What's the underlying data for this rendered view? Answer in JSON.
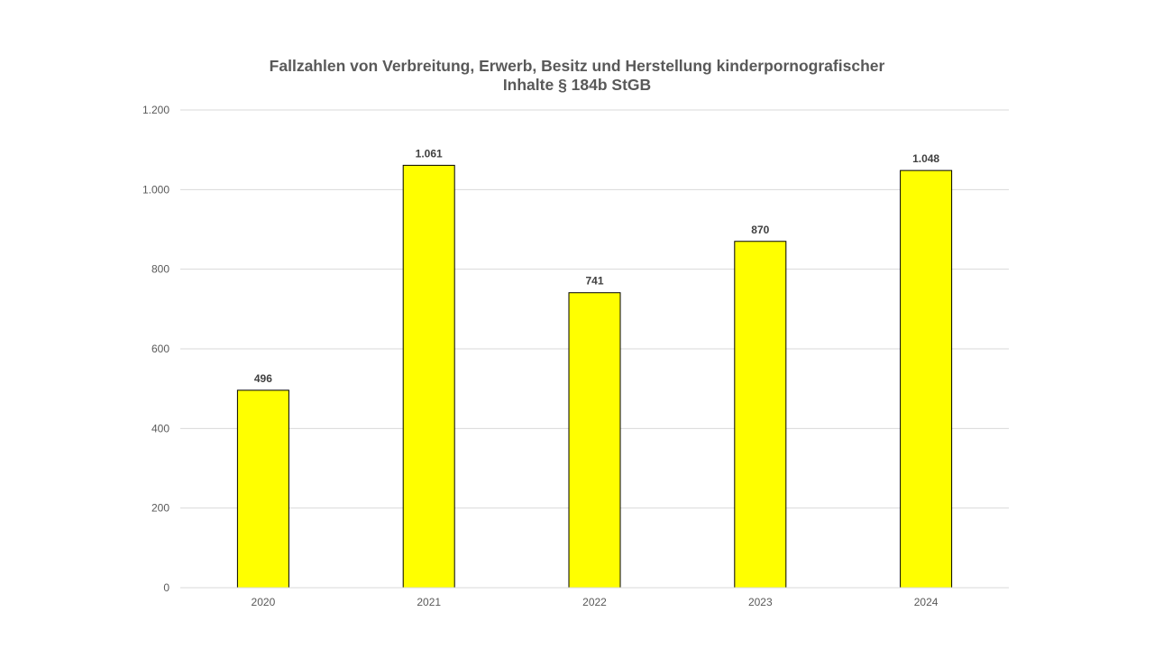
{
  "chart_data": {
    "type": "bar",
    "title_lines": [
      "Fallzahlen von Verbreitung, Erwerb, Besitz und Herstellung kinderpornografischer",
      "Inhalte § 184b StGB"
    ],
    "categories": [
      "2020",
      "2021",
      "2022",
      "2023",
      "2024"
    ],
    "values": [
      496,
      1061,
      741,
      870,
      1048
    ],
    "data_labels": [
      "496",
      "1.061",
      "741",
      "870",
      "1.048"
    ],
    "ylim": [
      0,
      1200
    ],
    "y_ticks": [
      0,
      200,
      400,
      600,
      800,
      1000,
      1200
    ],
    "y_tick_labels": [
      "0",
      "200",
      "400",
      "600",
      "800",
      "1.000",
      "1.200"
    ],
    "xlabel": "",
    "ylabel": "",
    "grid": true,
    "legend": "none",
    "colors": {
      "bar_fill": "#ffff00",
      "bar_stroke": "#000000",
      "grid": "#d9d9d9",
      "axis": "#d9d9d9",
      "title": "#595959",
      "tick_label": "#595959",
      "data_label": "#404040"
    }
  }
}
